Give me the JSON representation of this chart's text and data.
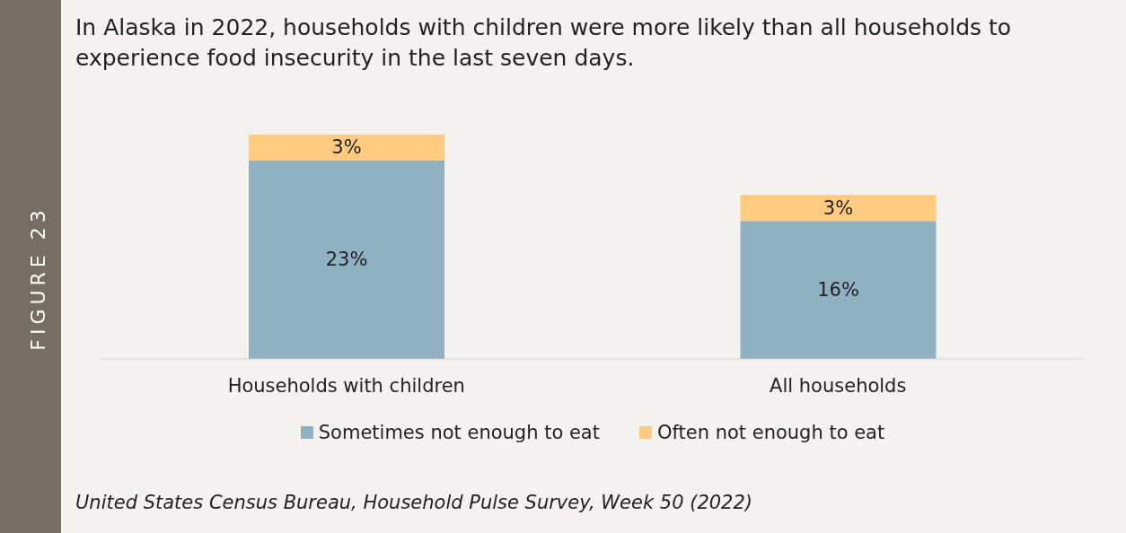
{
  "chart_data": {
    "type": "bar",
    "title": "In Alaska in 2022, households with children were more likely than all households to experience food insecurity in the last seven days.",
    "categories": [
      "Households with children",
      "All households"
    ],
    "stacked": true,
    "series": [
      {
        "name": "Sometimes not enough to eat",
        "color": "#8fb1c1",
        "values": [
          23,
          16
        ],
        "value_labels": [
          "23%",
          "16%"
        ]
      },
      {
        "name": "Often not enough to eat",
        "color": "#ffcb80",
        "values": [
          3,
          3
        ],
        "value_labels": [
          "3%",
          "3%"
        ]
      }
    ],
    "legend": "bottom",
    "annotations": [
      "FIGURE 23",
      "United States Census Bureau, Household Pulse Survey, Week 50 (2022)"
    ]
  }
}
